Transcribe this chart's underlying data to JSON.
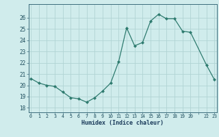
{
  "x": [
    0,
    1,
    2,
    3,
    4,
    5,
    6,
    7,
    8,
    9,
    10,
    11,
    12,
    13,
    14,
    15,
    16,
    17,
    18,
    19,
    20,
    22,
    23
  ],
  "y": [
    20.6,
    20.2,
    20.0,
    19.9,
    19.4,
    18.9,
    18.8,
    18.5,
    18.9,
    19.5,
    20.2,
    22.1,
    25.1,
    23.5,
    23.8,
    25.7,
    26.3,
    25.9,
    25.9,
    24.8,
    24.7,
    21.8,
    20.5
  ],
  "line_color": "#2d7a6e",
  "marker": "D",
  "marker_size": 2.2,
  "bg_color": "#d0ecec",
  "grid_color": "#b0d4d4",
  "xlabel": "Humidex (Indice chaleur)",
  "xtick_labels": [
    "0",
    "1",
    "2",
    "3",
    "4",
    "5",
    "6",
    "7",
    "8",
    "9",
    "10",
    "11",
    "12",
    "13",
    "14",
    "15",
    "16",
    "17",
    "18",
    "19",
    "20",
    "",
    "22",
    "23"
  ],
  "yticks": [
    18,
    19,
    20,
    21,
    22,
    23,
    24,
    25,
    26
  ],
  "ylim": [
    17.6,
    27.2
  ],
  "xlim": [
    -0.3,
    23.3
  ],
  "tick_color": "#1a4a5a",
  "xlabel_color": "#1a3a5a",
  "xlabel_fontsize": 6.0
}
